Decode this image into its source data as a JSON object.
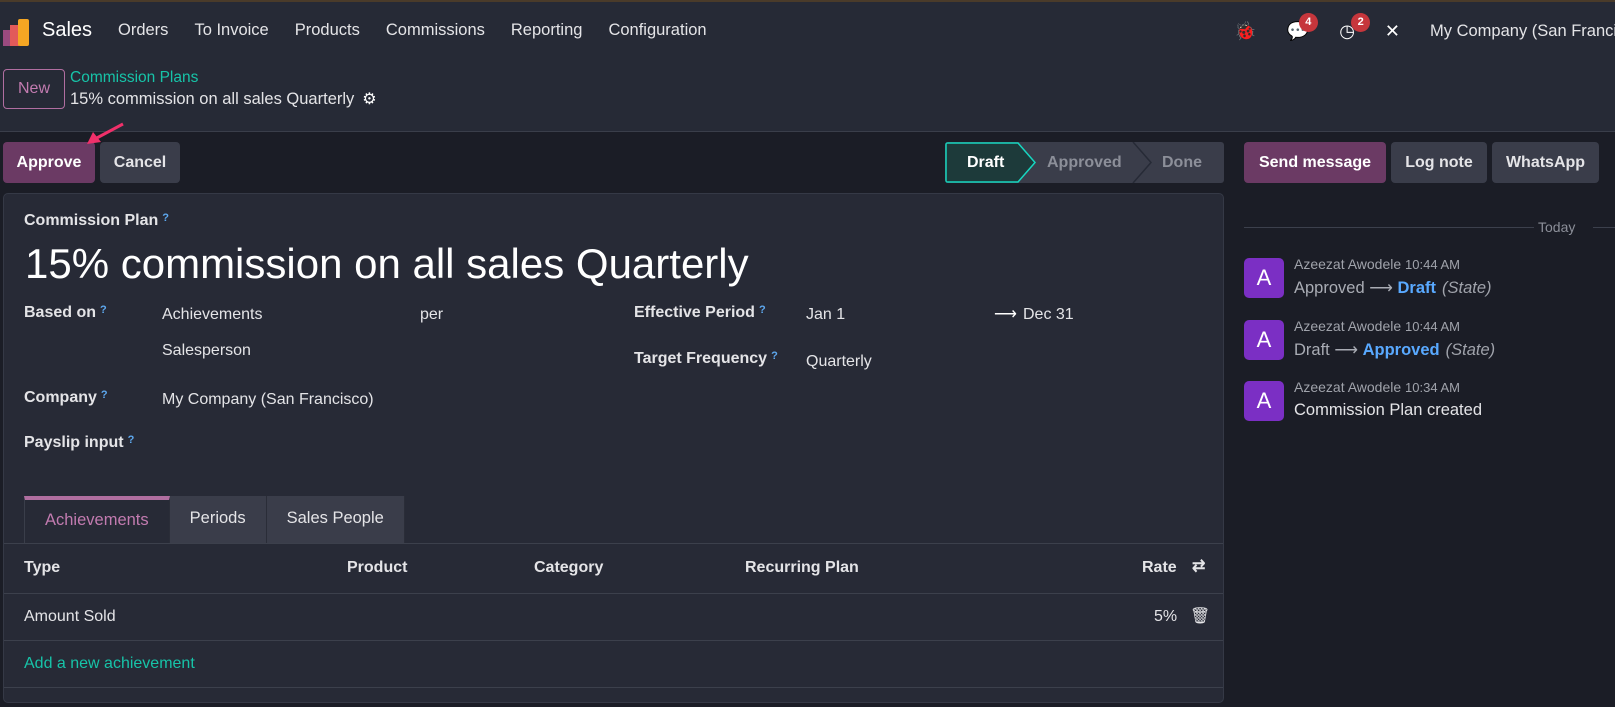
{
  "navbar": {
    "app": "Sales",
    "menu": [
      "Orders",
      "To Invoice",
      "Products",
      "Commissions",
      "Reporting",
      "Configuration"
    ],
    "messages_badge": "4",
    "activities_badge": "2",
    "company": "My Company (San Francisco)"
  },
  "control": {
    "new_label": "New",
    "breadcrumb_parent": "Commission Plans",
    "breadcrumb_current": "15% commission on all sales Quarterly"
  },
  "actions": {
    "approve": "Approve",
    "cancel": "Cancel"
  },
  "statusbar": {
    "stages": [
      "Draft",
      "Approved",
      "Done"
    ],
    "current": "Draft"
  },
  "form": {
    "title_label": "Commission Plan",
    "title": "15% commission on all sales Quarterly",
    "based_on_label": "Based on",
    "based_on": "Achievements",
    "per": "per",
    "per_value": "Salesperson",
    "company_label": "Company",
    "company": "My Company (San Francisco)",
    "payslip_label": "Payslip input",
    "period_label": "Effective Period",
    "period_from": "Jan 1",
    "period_to": "Dec 31",
    "frequency_label": "Target Frequency",
    "frequency": "Quarterly",
    "help": "?"
  },
  "tabs": [
    "Achievements",
    "Periods",
    "Sales People"
  ],
  "table": {
    "columns": [
      "Type",
      "Product",
      "Category",
      "Recurring Plan",
      "Rate"
    ],
    "rows": [
      {
        "type": "Amount Sold",
        "rate": "5%"
      }
    ],
    "add_line": "Add a new achievement"
  },
  "chatter": {
    "send_message": "Send message",
    "log_note": "Log note",
    "whatsapp": "WhatsApp",
    "date_sep": "Today",
    "messages": [
      {
        "initial": "A",
        "author": "Azeezat Awodele",
        "time": "10:44 AM",
        "old": "Approved",
        "new": "Draft",
        "field": "(State)"
      },
      {
        "initial": "A",
        "author": "Azeezat Awodele",
        "time": "10:44 AM",
        "old": "Draft",
        "new": "Approved",
        "field": "(State)"
      },
      {
        "initial": "A",
        "author": "Azeezat Awodele",
        "time": "10:34 AM",
        "text": "Commission Plan created"
      }
    ]
  },
  "colors": {
    "primary": "#6b3a64",
    "accent": "#17c3a8",
    "link_blue": "#59a9ff",
    "badge": "#c6363c",
    "avatar": "#7b2fc4"
  }
}
